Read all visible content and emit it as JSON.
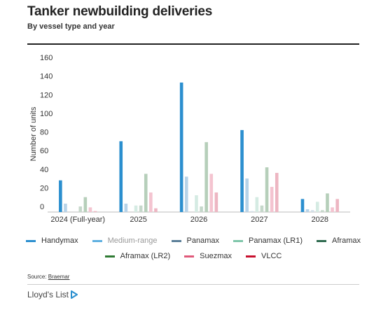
{
  "header": {
    "title": "Tanker newbuilding deliveries",
    "subtitle": "By vessel type and year"
  },
  "chart_data": {
    "type": "bar",
    "title": "Tanker newbuilding deliveries",
    "subtitle": "By vessel type and year",
    "xlabel": "",
    "ylabel": "Number of units",
    "ylim": [
      0,
      160
    ],
    "yticks": [
      0,
      20,
      40,
      60,
      80,
      100,
      120,
      140,
      160
    ],
    "grid": false,
    "legend_position": "bottom",
    "categories": [
      "2024 (Full-year)",
      "2025",
      "2026",
      "2027",
      "2028"
    ],
    "series": [
      {
        "name": "Handymax",
        "color": "#2b8fcf",
        "values": [
          34,
          76,
          139,
          88,
          14
        ]
      },
      {
        "name": "Medium-range",
        "color": "#b7d3e8",
        "values": [
          9,
          9,
          38,
          36,
          3
        ]
      },
      {
        "name": "Panamax",
        "color": "#d2dfe8",
        "values": [
          0,
          0,
          0,
          1,
          2
        ]
      },
      {
        "name": "Panamax (LR1)",
        "color": "#d5ebe3",
        "values": [
          0,
          7,
          18,
          16,
          11
        ]
      },
      {
        "name": "Aframax",
        "color": "#c6d8cb",
        "values": [
          6,
          7,
          6,
          7,
          2
        ]
      },
      {
        "name": "Aframax (LR2)",
        "color": "#b6cfba",
        "values": [
          16,
          41,
          75,
          48,
          20
        ]
      },
      {
        "name": "Suezmax",
        "color": "#f4c4d0",
        "values": [
          5,
          21,
          41,
          27,
          5
        ]
      },
      {
        "name": "VLCC",
        "color": "#edb6c2",
        "values": [
          1,
          4,
          21,
          42,
          14
        ]
      }
    ]
  },
  "legend": {
    "items": [
      {
        "label": "Handymax",
        "color": "#2b8fcf"
      },
      {
        "label": "Medium-range",
        "color": "#5fb0e0"
      },
      {
        "label": "Panamax",
        "color": "#5c7f99"
      },
      {
        "label": "Panamax (LR1)",
        "color": "#7fc6aa"
      },
      {
        "label": "Aframax",
        "color": "#2f6b4f"
      },
      {
        "label": "Aframax (LR2)",
        "color": "#2f7a33"
      },
      {
        "label": "Suezmax",
        "color": "#e05a7a"
      },
      {
        "label": "VLCC",
        "color": "#c8102e"
      }
    ]
  },
  "footer": {
    "source_prefix": "Source: ",
    "source_name": "Braemar",
    "brand": "Lloyd's List",
    "brand_icon": "play-triangle-icon",
    "brand_color": "#2b8fcf"
  }
}
